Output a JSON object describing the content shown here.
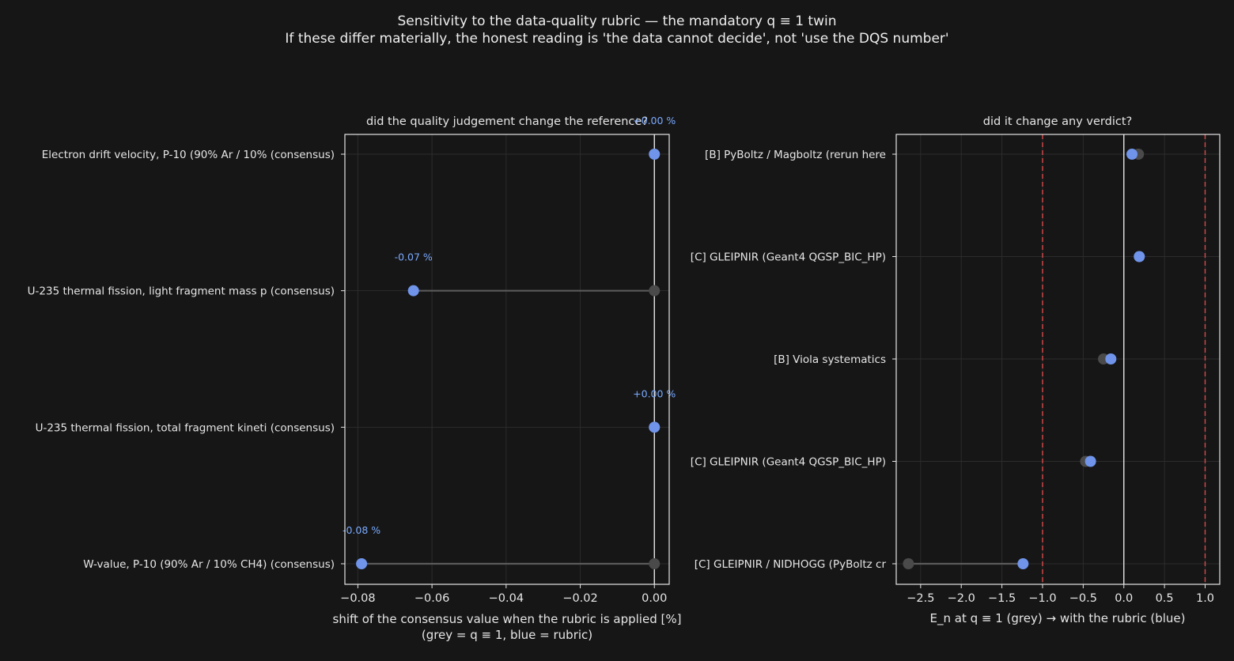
{
  "figure": {
    "title_line1": "Sensitivity to the data-quality rubric — the mandatory q ≡ 1 twin",
    "title_line2": "If these differ materially, the honest reading is 'the data cannot decide', not 'use the DQS number'"
  },
  "colors": {
    "background": "#161616",
    "axes_edge": "#e6e6e6",
    "grid": "#2c2c2c",
    "baseline_point": "#4a4a4a",
    "rubric_point": "#6f94ea",
    "connector": "#5a5a5a",
    "threshold": "#d94b4b",
    "annotation": "#7aaaff"
  },
  "chart_data": [
    {
      "type": "scatter",
      "title": "did the quality judgement change the reference?",
      "xlabel_line1": "shift of the consensus value when the rubric is applied [%]",
      "xlabel_line2": "(grey = q ≡ 1, blue = rubric)",
      "xlim": [
        -0.0835,
        0.004
      ],
      "xticks": [
        -0.08,
        -0.06,
        -0.04,
        -0.02,
        0.0
      ],
      "xtick_labels": [
        "−0.08",
        "−0.06",
        "−0.04",
        "−0.02",
        "0.00"
      ],
      "grid": true,
      "zero_line": 0.0,
      "categories": [
        "Electron drift velocity, P-10 (90% Ar / 10%  (consensus)",
        "U-235 thermal fission, light fragment mass p  (consensus)",
        "U-235 thermal fission, total fragment kineti  (consensus)",
        "W-value, P-10 (90% Ar / 10% CH4)  (consensus)"
      ],
      "series": [
        {
          "role": "q=1 (grey)",
          "values": [
            0.0,
            0.0,
            0.0,
            0.0
          ]
        },
        {
          "role": "rubric (blue)",
          "values": [
            0.0,
            -0.065,
            0.0,
            -0.079
          ]
        }
      ],
      "annotations": [
        "+0.00 %",
        "-0.07 %",
        "+0.00 %",
        "-0.08 %"
      ]
    },
    {
      "type": "scatter",
      "title": "did it change any verdict?",
      "xlabel": "E_n at q ≡ 1 (grey) → with the rubric (blue)",
      "xlim": [
        -2.8,
        1.18
      ],
      "xticks": [
        -2.5,
        -2.0,
        -1.5,
        -1.0,
        -0.5,
        0.0,
        0.5,
        1.0
      ],
      "xtick_labels": [
        "−2.5",
        "−2.0",
        "−1.5",
        "−1.0",
        "−0.5",
        "0.0",
        "0.5",
        "1.0"
      ],
      "grid": true,
      "zero_line": 0.0,
      "threshold_lines": [
        -1.0,
        1.0
      ],
      "categories": [
        "[B] PyBoltz / Magboltz (rerun here",
        "[C] GLEIPNIR (Geant4 QGSP_BIC_HP)",
        "[B] Viola systematics",
        "[C] GLEIPNIR (Geant4 QGSP_BIC_HP)",
        "[C] GLEIPNIR / NIDHOGG (PyBoltz cr"
      ],
      "series": [
        {
          "role": "q=1 (grey)",
          "values": [
            0.18,
            0.19,
            -0.25,
            -0.47,
            -2.65
          ]
        },
        {
          "role": "rubric (blue)",
          "values": [
            0.1,
            0.19,
            -0.16,
            -0.41,
            -1.24
          ]
        }
      ]
    }
  ]
}
